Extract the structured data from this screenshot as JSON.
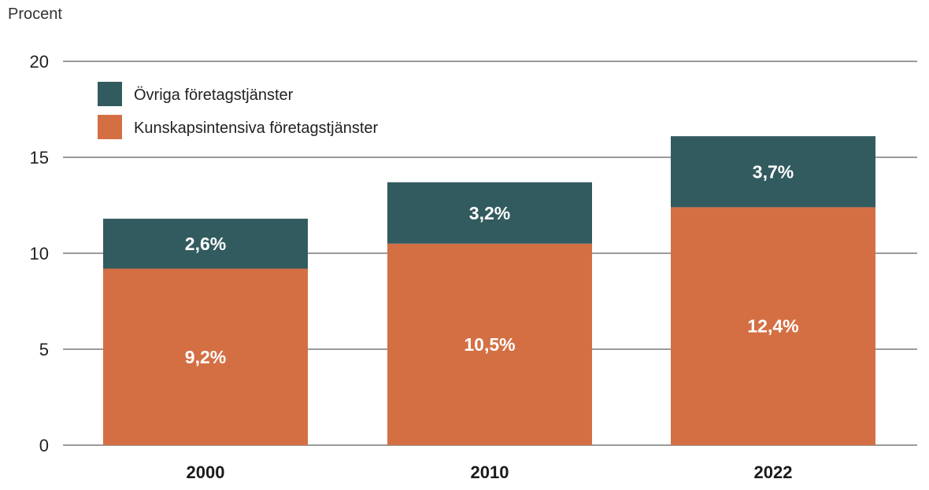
{
  "chart_data": {
    "type": "bar",
    "stacked": true,
    "ylabel": "Procent",
    "xlabel": "",
    "ylim": [
      0,
      20
    ],
    "yticks": [
      0,
      5,
      10,
      15,
      20
    ],
    "grid": true,
    "legend_position": "top-left",
    "categories": [
      "2000",
      "2010",
      "2022"
    ],
    "series": [
      {
        "name": "Kunskapsintensiva företagstjänster",
        "color": "#D46F44",
        "values": [
          9.2,
          10.5,
          12.4
        ],
        "labels": [
          "9,2%",
          "10,5%",
          "12,4%"
        ]
      },
      {
        "name": "Övriga företagstjänster",
        "color": "#325B5F",
        "values": [
          2.6,
          3.2,
          3.7
        ],
        "labels": [
          "2,6%",
          "3,2%",
          "3,7%"
        ]
      }
    ],
    "legend_order": [
      1,
      0
    ]
  }
}
